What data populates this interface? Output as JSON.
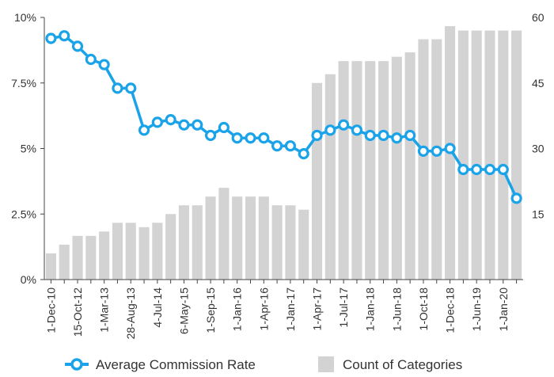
{
  "chart_data": {
    "type": "bar-line-combo",
    "categories": [
      "1-Dec-10",
      "",
      "15-Oct-12",
      "",
      "1-Mar-13",
      "",
      "28-Aug-13",
      "",
      "4-Jul-14",
      "",
      "6-May-15",
      "",
      "1-Sep-15",
      "",
      "1-Jan-16",
      "",
      "1-Apr-16",
      "",
      "1-Jan-17",
      "",
      "1-Apr-17",
      "",
      "1-Jul-17",
      "",
      "1-Jan-18",
      "",
      "1-Jun-18",
      "",
      "1-Oct-18",
      "",
      "1-Dec-18",
      "",
      "1-Jun-19",
      "",
      "1-Jan-20",
      ""
    ],
    "series": [
      {
        "name": "Average Commission Rate",
        "type": "line",
        "axis": "left",
        "color": "#1aa3e8",
        "values": [
          9.2,
          9.3,
          8.9,
          8.4,
          8.2,
          7.3,
          7.3,
          5.7,
          6.0,
          6.1,
          5.9,
          5.9,
          5.5,
          5.8,
          5.4,
          5.4,
          5.4,
          5.1,
          5.1,
          4.8,
          5.5,
          5.7,
          5.9,
          5.7,
          5.5,
          5.5,
          5.4,
          5.5,
          4.9,
          4.9,
          5.0,
          4.2,
          4.2,
          4.2,
          4.2,
          3.1
        ]
      },
      {
        "name": "Count of Categories",
        "type": "bar",
        "axis": "right",
        "color": "#d3d3d3",
        "values": [
          6,
          8,
          10,
          10,
          11,
          13,
          13,
          12,
          13,
          15,
          17,
          17,
          19,
          21,
          19,
          19,
          19,
          17,
          17,
          16,
          45,
          47,
          50,
          50,
          50,
          50,
          51,
          52,
          55,
          55,
          58,
          57,
          57,
          57,
          57,
          57
        ]
      }
    ],
    "yaxis_left": {
      "min": 0,
      "max": 10,
      "ticks": [
        0,
        2.5,
        5,
        7.5,
        10
      ],
      "tick_labels": [
        "0%",
        "2.5%",
        "5%",
        "7.5%",
        "10%"
      ]
    },
    "yaxis_right": {
      "min": 0,
      "max": 60,
      "ticks": [
        15,
        30,
        45,
        60
      ],
      "tick_labels": [
        "15",
        "30",
        "45",
        "60"
      ]
    },
    "grid": false,
    "legend": {
      "placement": "bottom",
      "entries": [
        "Average Commission Rate",
        "Count of Categories"
      ]
    }
  }
}
